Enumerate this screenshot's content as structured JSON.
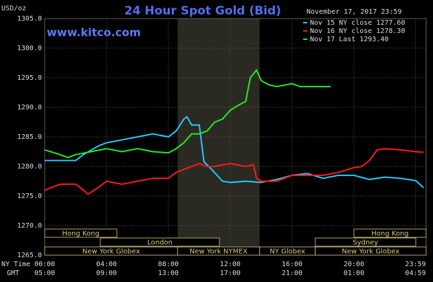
{
  "chart_data": {
    "type": "line",
    "title": "24 Hour Spot Gold (Bid)",
    "y_label": "USD/oz",
    "watermark": "www.kitco.com",
    "timestamp": "November 17, 2017 23:59",
    "x_row_labels": [
      "NY Time",
      "GMT"
    ],
    "xlim": [
      0,
      24.67
    ],
    "ylim": [
      1265,
      1305
    ],
    "yticks": [
      {
        "value": 1265,
        "label": "1265.0"
      },
      {
        "value": 1270,
        "label": "1270.0"
      },
      {
        "value": 1275,
        "label": "1275.0"
      },
      {
        "value": 1280,
        "label": "1280.0"
      },
      {
        "value": 1285,
        "label": "1285.0"
      },
      {
        "value": 1290,
        "label": "1290.0"
      },
      {
        "value": 1295,
        "label": "1295.0"
      },
      {
        "value": 1300,
        "label": "1300.0"
      },
      {
        "value": 1305,
        "label": "1305.0"
      }
    ],
    "xticks": [
      {
        "value": 0,
        "label": "00:00"
      },
      {
        "value": 4,
        "label": "04:00"
      },
      {
        "value": 8,
        "label": "08:00"
      },
      {
        "value": 12,
        "label": "12:00"
      },
      {
        "value": 16,
        "label": "16:00"
      },
      {
        "value": 20,
        "label": "20:00"
      },
      {
        "value": 23.98,
        "label": "23:59"
      }
    ],
    "gmt_ticks": [
      {
        "value": 0,
        "label": "05:00"
      },
      {
        "value": 4,
        "label": "09:00"
      },
      {
        "value": 8,
        "label": "13:00"
      },
      {
        "value": 12,
        "label": "17:00"
      },
      {
        "value": 16,
        "label": "21:00"
      },
      {
        "value": 20,
        "label": "01:00"
      },
      {
        "value": 23.98,
        "label": "04:59"
      }
    ],
    "grid": true,
    "shaded": [
      8.6,
      13.9
    ],
    "sessions": [
      {
        "label": "Hong Kong",
        "row": 0,
        "start": 0,
        "end": 4.67
      },
      {
        "label": "Hong Kong",
        "row": 0,
        "start": 20,
        "end": 24.67
      },
      {
        "label": "London",
        "row": 1,
        "start": 3.6,
        "end": 11.3
      },
      {
        "label": "Sydney",
        "row": 1,
        "start": 17.5,
        "end": 24
      },
      {
        "label": "New York Globex",
        "row": 2,
        "start": 0,
        "end": 8.6
      },
      {
        "label": "New York NYMEX",
        "row": 2,
        "start": 8.6,
        "end": 13.9
      },
      {
        "label": "NY Globex",
        "row": 2,
        "start": 13.9,
        "end": 17.5
      },
      {
        "label": "New York Globex",
        "row": 2,
        "start": 17.5,
        "end": 24.67
      }
    ],
    "series": [
      {
        "name": "Nov 15 NY close 1277.60",
        "color": "#22ccff",
        "x": [
          0,
          1,
          2,
          2.5,
          3.5,
          4,
          5,
          6,
          7,
          8,
          8.5,
          9,
          9.2,
          9.5,
          10,
          10.3,
          10.8,
          11.5,
          12,
          13,
          14,
          15,
          16,
          17,
          18,
          19,
          20,
          21,
          22,
          23,
          24,
          24.5
        ],
        "values": [
          1281,
          1281,
          1281,
          1282,
          1283.5,
          1284,
          1284.5,
          1285,
          1285.5,
          1285,
          1286,
          1288,
          1288.4,
          1287,
          1287,
          1280.8,
          1279.5,
          1277.5,
          1277.3,
          1277.5,
          1277.3,
          1277.8,
          1278.5,
          1278.8,
          1278,
          1278.5,
          1278.5,
          1277.8,
          1278.2,
          1278,
          1277.6,
          1276.4
        ]
      },
      {
        "name": "Nov 16 NY close 1278.30",
        "color": "#ff1a1a",
        "x": [
          0,
          1,
          2,
          2.5,
          2.8,
          3.5,
          4,
          5,
          6,
          7,
          8,
          8.5,
          9,
          10,
          10.5,
          11,
          12,
          13,
          13.5,
          13.7,
          14,
          15,
          15.5,
          16,
          17,
          18,
          19,
          20,
          20.5,
          21,
          21.5,
          22,
          23,
          24,
          24.5
        ],
        "values": [
          1276,
          1277,
          1277,
          1276,
          1275.3,
          1276.5,
          1277.5,
          1277,
          1277.5,
          1278,
          1278,
          1279,
          1279.5,
          1280.5,
          1280,
          1280,
          1280.5,
          1280,
          1280.3,
          1278,
          1277.5,
          1277.5,
          1278,
          1278.5,
          1278.5,
          1278.5,
          1279,
          1279.8,
          1280,
          1281,
          1282.8,
          1283,
          1282.8,
          1282.5,
          1282.4
        ]
      },
      {
        "name": "Nov 17 Last 1293.40",
        "color": "#22ee22",
        "x": [
          0,
          1,
          1.5,
          2,
          3,
          4,
          5,
          6,
          7,
          8,
          8.5,
          9,
          9.5,
          10,
          10.5,
          11,
          11.5,
          12,
          12.5,
          13,
          13.3,
          13.7,
          14,
          14.5,
          15,
          16,
          16.5,
          17,
          18,
          18.5
        ],
        "values": [
          1282.8,
          1282,
          1281.5,
          1282,
          1282.5,
          1283,
          1282.5,
          1283,
          1282.5,
          1282.3,
          1283,
          1284,
          1285.5,
          1285.5,
          1286,
          1287.5,
          1288,
          1289.5,
          1290.3,
          1291,
          1295,
          1296.3,
          1294.5,
          1293.8,
          1293.5,
          1294,
          1293.5,
          1293.5,
          1293.5,
          1293.5
        ]
      }
    ]
  }
}
